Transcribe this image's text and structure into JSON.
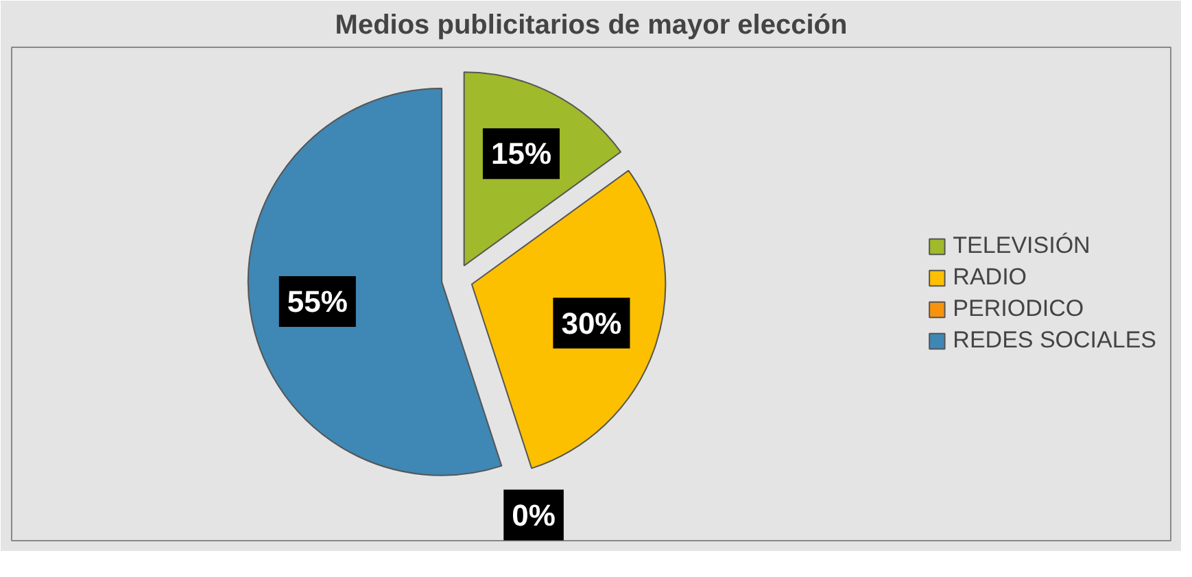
{
  "chart_data": {
    "type": "pie",
    "title": "Medios publicitarios de mayor elección",
    "categories": [
      "TELEVISIÓN",
      "RADIO",
      "PERIODICO",
      "REDES SOCIALES"
    ],
    "values": [
      15,
      30,
      0,
      55
    ],
    "colors": [
      "#9fba2a",
      "#fcc000",
      "#f7930c",
      "#3f87b4"
    ],
    "value_labels": [
      "15%",
      "30%",
      "0%",
      "55%"
    ],
    "legend": "right"
  }
}
